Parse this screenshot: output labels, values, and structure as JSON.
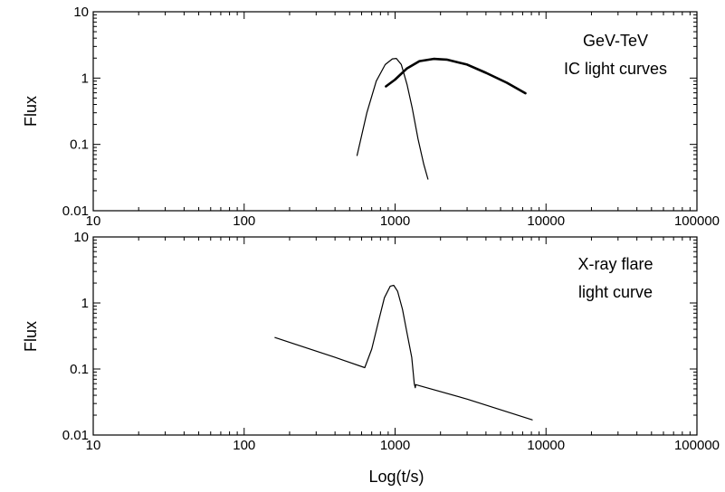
{
  "chart_data": [
    {
      "type": "line",
      "xscale": "log",
      "yscale": "log",
      "xlim": [
        10,
        100000
      ],
      "ylim": [
        0.01,
        10
      ],
      "xlabel": "",
      "ylabel": "Flux",
      "x_tick_labels": [
        "10",
        "100",
        "1000",
        "10000",
        "100000"
      ],
      "y_tick_labels": [
        "0.01",
        "0.1",
        "1",
        "10"
      ],
      "annotation": [
        "GeV-TeV",
        "IC light curves"
      ],
      "series": [
        {
          "style": "thin",
          "points": [
            [
              560,
              0.068
            ],
            [
              650,
              0.3
            ],
            [
              750,
              0.9
            ],
            [
              860,
              1.6
            ],
            [
              960,
              1.95
            ],
            [
              1020,
              1.98
            ],
            [
              1100,
              1.6
            ],
            [
              1200,
              0.8
            ],
            [
              1300,
              0.35
            ],
            [
              1420,
              0.12
            ],
            [
              1550,
              0.05
            ],
            [
              1650,
              0.03
            ]
          ]
        },
        {
          "style": "thick",
          "points": [
            [
              870,
              0.75
            ],
            [
              1000,
              0.95
            ],
            [
              1200,
              1.4
            ],
            [
              1450,
              1.8
            ],
            [
              1800,
              1.95
            ],
            [
              2200,
              1.9
            ],
            [
              3000,
              1.6
            ],
            [
              4000,
              1.2
            ],
            [
              5500,
              0.85
            ],
            [
              7300,
              0.59
            ]
          ]
        }
      ]
    },
    {
      "type": "line",
      "xscale": "log",
      "yscale": "log",
      "xlim": [
        10,
        100000
      ],
      "ylim": [
        0.01,
        10
      ],
      "xlabel": "Log(t/s)",
      "ylabel": "Flux",
      "x_tick_labels": [
        "10",
        "100",
        "1000",
        "10000",
        "100000"
      ],
      "y_tick_labels": [
        "0.01",
        "0.1",
        "1",
        "10"
      ],
      "annotation": [
        "X-ray flare",
        "light curve"
      ],
      "series": [
        {
          "style": "thin",
          "points": [
            [
              160,
              0.3
            ],
            [
              400,
              0.15
            ],
            [
              630,
              0.105
            ],
            [
              700,
              0.2
            ],
            [
              780,
              0.55
            ],
            [
              850,
              1.2
            ],
            [
              930,
              1.8
            ],
            [
              980,
              1.85
            ],
            [
              1040,
              1.5
            ],
            [
              1120,
              0.8
            ],
            [
              1200,
              0.35
            ],
            [
              1290,
              0.15
            ],
            [
              1340,
              0.06
            ],
            [
              1360,
              0.052
            ],
            [
              1370,
              0.058
            ],
            [
              3000,
              0.035
            ],
            [
              8100,
              0.017
            ]
          ]
        }
      ]
    }
  ]
}
